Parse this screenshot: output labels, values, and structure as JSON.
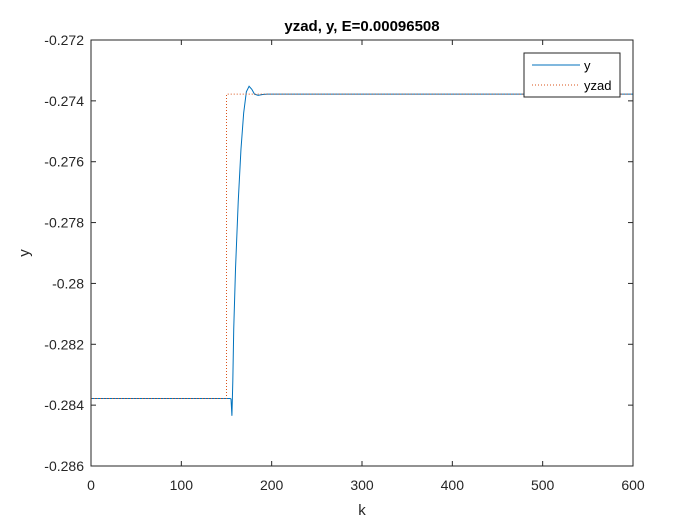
{
  "chart_data": {
    "type": "line",
    "title": "yzad, y, E=0.00096508",
    "xlabel": "k",
    "ylabel": "y",
    "xlim": [
      0,
      600
    ],
    "ylim": [
      -0.286,
      -0.272
    ],
    "xticks": [
      0,
      100,
      200,
      300,
      400,
      500,
      600
    ],
    "xtick_labels": [
      "0",
      "100",
      "200",
      "300",
      "400",
      "500",
      "600"
    ],
    "yticks": [
      -0.272,
      -0.274,
      -0.276,
      -0.278,
      -0.28,
      -0.282,
      -0.284,
      -0.286
    ],
    "ytick_labels": [
      "-0.272",
      "-0.274",
      "-0.276",
      "-0.278",
      "-0.28",
      "-0.282",
      "-0.284",
      "-0.286"
    ],
    "grid": false,
    "legend_position": "top-right",
    "series": [
      {
        "name": "y",
        "color": "#0072BD",
        "style": "solid",
        "x": [
          0,
          150,
          154,
          155,
          156,
          157,
          158,
          160,
          163,
          166,
          169,
          172,
          175,
          178,
          181,
          185,
          190,
          195,
          200,
          600
        ],
        "y": [
          -0.28378,
          -0.28378,
          -0.28378,
          -0.2838,
          -0.28435,
          -0.2832,
          -0.2815,
          -0.2795,
          -0.2773,
          -0.2756,
          -0.2744,
          -0.2737,
          -0.27352,
          -0.27362,
          -0.27378,
          -0.27382,
          -0.27379,
          -0.27378,
          -0.27378,
          -0.27378
        ]
      },
      {
        "name": "yzad",
        "color": "#D95319",
        "style": "dotted",
        "x": [
          0,
          150,
          150,
          600
        ],
        "y": [
          -0.28378,
          -0.28378,
          -0.27378,
          -0.27378
        ]
      }
    ]
  }
}
